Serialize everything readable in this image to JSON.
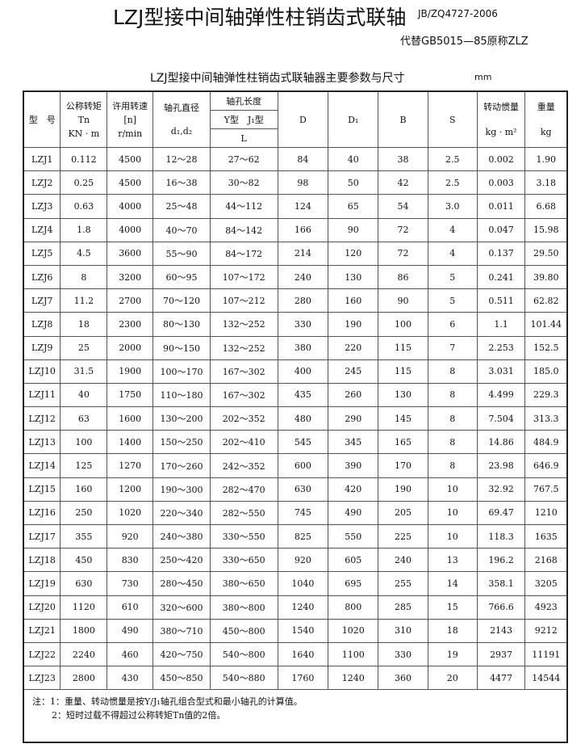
{
  "title": "LZJ型接中间轴弹性柱销齿式联轴",
  "standard": "JB/ZQ4727-2006",
  "replaces": "代替GB5015—85原称ZLZ",
  "table_title": "LZJ型接中间轴弹性柱销齿式联轴器主要参数与尺寸",
  "unit": "mm",
  "headers": {
    "model": "型　号",
    "torque": "公称转矩",
    "torque_sym": "Tn",
    "torque_unit": "KN · m",
    "speed": "许用转速",
    "speed_sym": "[n]",
    "speed_unit": "r/min",
    "bore": "轴孔直径",
    "bore_sym": "d₁,d₂",
    "len": "轴孔长度",
    "len_types": "Y型　J₁型",
    "len_sym": "L",
    "D": "D",
    "D1": "D₁",
    "B": "B",
    "S": "S",
    "inertia": "转动惯量",
    "inertia_unit": "kg · m²",
    "weight": "重量",
    "weight_unit": "kg"
  },
  "rows": [
    [
      "LZJ1",
      "0.112",
      "4500",
      "12～28",
      "27～62",
      "84",
      "40",
      "38",
      "2.5",
      "0.002",
      "1.90"
    ],
    [
      "LZJ2",
      "0.25",
      "4500",
      "16～38",
      "30～82",
      "98",
      "50",
      "42",
      "2.5",
      "0.003",
      "3.18"
    ],
    [
      "LZJ3",
      "0.63",
      "4000",
      "25～48",
      "44～112",
      "124",
      "65",
      "54",
      "3.0",
      "0.011",
      "6.68"
    ],
    [
      "LZJ4",
      "1.8",
      "4000",
      "40～70",
      "84～142",
      "166",
      "90",
      "72",
      "4",
      "0.047",
      "15.98"
    ],
    [
      "LZJ5",
      "4.5",
      "3600",
      "55～90",
      "84～172",
      "214",
      "120",
      "72",
      "4",
      "0.137",
      "29.50"
    ],
    [
      "LZJ6",
      "8",
      "3200",
      "60～95",
      "107～172",
      "240",
      "130",
      "86",
      "5",
      "0.241",
      "39.80"
    ],
    [
      "LZJ7",
      "11.2",
      "2700",
      "70～120",
      "107～212",
      "280",
      "160",
      "90",
      "5",
      "0.511",
      "62.82"
    ],
    [
      "LZJ8",
      "18",
      "2300",
      "80～130",
      "132～252",
      "330",
      "190",
      "100",
      "6",
      "1.1",
      "101.44"
    ],
    [
      "LZJ9",
      "25",
      "2000",
      "90～150",
      "132～252",
      "380",
      "220",
      "115",
      "7",
      "2.253",
      "152.5"
    ],
    [
      "LZJ10",
      "31.5",
      "1900",
      "100～170",
      "167～302",
      "400",
      "245",
      "115",
      "8",
      "3.031",
      "185.0"
    ],
    [
      "LZJ11",
      "40",
      "1750",
      "110～180",
      "167～302",
      "435",
      "260",
      "130",
      "8",
      "4.499",
      "229.3"
    ],
    [
      "LZJ12",
      "63",
      "1600",
      "130～200",
      "202～352",
      "480",
      "290",
      "145",
      "8",
      "7.504",
      "313.3"
    ],
    [
      "LZJ13",
      "100",
      "1400",
      "150～250",
      "202～410",
      "545",
      "345",
      "165",
      "8",
      "14.86",
      "484.9"
    ],
    [
      "LZJ14",
      "125",
      "1270",
      "170～260",
      "242～352",
      "600",
      "390",
      "170",
      "8",
      "23.98",
      "646.9"
    ],
    [
      "LZJ15",
      "160",
      "1200",
      "190～300",
      "282～470",
      "630",
      "420",
      "190",
      "10",
      "32.92",
      "767.5"
    ],
    [
      "LZJ16",
      "250",
      "1020",
      "220～340",
      "282～550",
      "745",
      "490",
      "205",
      "10",
      "69.47",
      "1210"
    ],
    [
      "LZJ17",
      "355",
      "920",
      "240～380",
      "330～550",
      "825",
      "550",
      "225",
      "10",
      "118.3",
      "1635"
    ],
    [
      "LZJ18",
      "450",
      "830",
      "250～420",
      "330～650",
      "920",
      "605",
      "240",
      "13",
      "196.2",
      "2168"
    ],
    [
      "LZJ19",
      "630",
      "730",
      "280～450",
      "380～650",
      "1040",
      "695",
      "255",
      "14",
      "358.1",
      "3205"
    ],
    [
      "LZJ20",
      "1120",
      "610",
      "320～600",
      "380～800",
      "1240",
      "800",
      "285",
      "15",
      "766.6",
      "4923"
    ],
    [
      "LZJ21",
      "1800",
      "490",
      "380～710",
      "450～800",
      "1540",
      "1020",
      "310",
      "18",
      "2143",
      "9212"
    ],
    [
      "LZJ22",
      "2240",
      "460",
      "420～750",
      "540～800",
      "1640",
      "1100",
      "330",
      "19",
      "2937",
      "11191"
    ],
    [
      "LZJ23",
      "2800",
      "430",
      "450～850",
      "540～880",
      "1760",
      "1240",
      "360",
      "20",
      "4477",
      "14544"
    ]
  ],
  "notes": [
    "注：1：重量、转动惯量是按Y/J₁轴孔组合型式和最小轴孔的计算值。",
    "2：短时过载不得超过公称转矩Tn值的2倍。"
  ]
}
